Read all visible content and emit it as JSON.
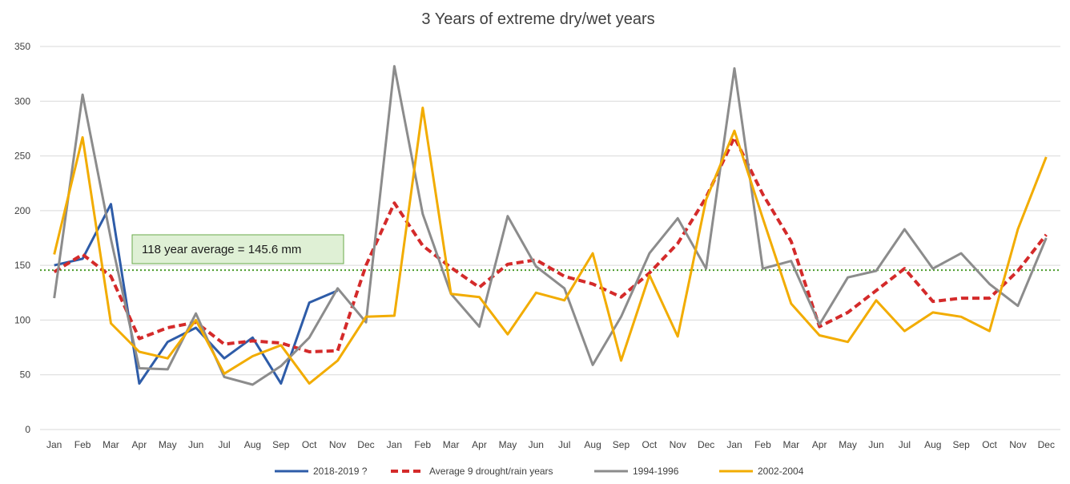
{
  "chart_data": {
    "type": "line",
    "title": "3 Years of extreme dry/wet years",
    "xlabel": "",
    "ylabel": "",
    "ylim": [
      0,
      350
    ],
    "yticks": [
      0,
      50,
      100,
      150,
      200,
      250,
      300,
      350
    ],
    "grid": true,
    "legend_position": "bottom",
    "categories": [
      "Jan",
      "Feb",
      "Mar",
      "Apr",
      "May",
      "Jun",
      "Jul",
      "Aug",
      "Sep",
      "Oct",
      "Nov",
      "Dec",
      "Jan",
      "Feb",
      "Mar",
      "Apr",
      "May",
      "Jun",
      "Jul",
      "Aug",
      "Sep",
      "Oct",
      "Nov",
      "Dec",
      "Jan",
      "Feb",
      "Mar",
      "Apr",
      "May",
      "Jun",
      "Jul",
      "Aug",
      "Sep",
      "Oct",
      "Nov",
      "Dec"
    ],
    "series": [
      {
        "name": "2018-2019 ?",
        "color": "#2e5ca8",
        "dash": "solid",
        "values": [
          150,
          156,
          206,
          42,
          80,
          93,
          65,
          84,
          42,
          116,
          127,
          null,
          null,
          null,
          null,
          null,
          null,
          null,
          null,
          null,
          null,
          null,
          null,
          null,
          null,
          null,
          null,
          null,
          null,
          null,
          null,
          null,
          null,
          null,
          null,
          null
        ]
      },
      {
        "name": "Average 9  drought/rain years",
        "color": "#d42a2a",
        "dash": "dashed",
        "values": [
          144,
          160,
          140,
          83,
          93,
          98,
          78,
          81,
          79,
          71,
          72,
          150,
          207,
          168,
          148,
          130,
          151,
          155,
          140,
          133,
          121,
          143,
          170,
          212,
          267,
          215,
          172,
          94,
          107,
          127,
          147,
          117,
          120,
          120,
          145,
          178
        ]
      },
      {
        "name": "1994-1996",
        "color": "#8c8c8c",
        "dash": "solid",
        "values": [
          120,
          306,
          174,
          56,
          55,
          106,
          48,
          41,
          58,
          84,
          129,
          98,
          332,
          197,
          124,
          94,
          195,
          149,
          129,
          59,
          103,
          161,
          193,
          147,
          330,
          147,
          154,
          96,
          139,
          145,
          183,
          147,
          161,
          133,
          113,
          175
        ]
      },
      {
        "name": "2002-2004",
        "color": "#f2ac00",
        "dash": "solid",
        "values": [
          160,
          267,
          97,
          71,
          65,
          100,
          51,
          67,
          77,
          42,
          63,
          103,
          104,
          294,
          124,
          121,
          87,
          125,
          118,
          161,
          63,
          141,
          85,
          210,
          273,
          193,
          115,
          86,
          80,
          118,
          90,
          107,
          103,
          90,
          183,
          249
        ]
      }
    ],
    "reference_line": {
      "value": 145.6,
      "color": "#4a9a2a"
    },
    "annotation": {
      "text": "118  year average = 145.6  mm",
      "fill": "#dff0d5",
      "border": "#6aaa4a"
    }
  }
}
